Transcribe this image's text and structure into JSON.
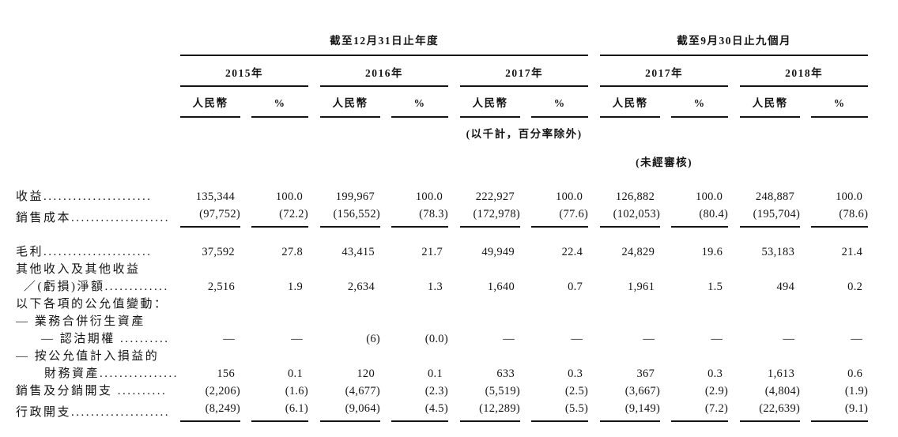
{
  "table": {
    "groups": [
      {
        "title": "截至12月31日止年度",
        "years": [
          "2015年",
          "2016年",
          "2017年"
        ]
      },
      {
        "title": "截至9月30日止九個月",
        "years": [
          "2017年",
          "2018年"
        ]
      }
    ],
    "col_headers": {
      "currency": "人民幣",
      "percent": "%"
    },
    "notes": {
      "units": "(以千計，百分率除外)",
      "unaudited": "(未經審核)"
    },
    "rows": [
      {
        "label": "收益......................",
        "indent": 0,
        "rule_after": false,
        "values": [
          "135,344",
          "100.0",
          "199,967",
          "100.0",
          "222,927",
          "100.0",
          "126,882",
          "100.0",
          "248,887",
          "100.0"
        ]
      },
      {
        "label": "銷售成本....................",
        "indent": 0,
        "rule_after": true,
        "values": [
          "(97,752)",
          "(72.2)",
          "(156,552)",
          "(78.3)",
          "(172,978)",
          "(77.6)",
          "(102,053)",
          "(80.4)",
          "(195,704)",
          "(78.6)"
        ]
      },
      {
        "label": "毛利......................",
        "indent": 0,
        "rule_after": false,
        "values": [
          "37,592",
          "27.8",
          "43,415",
          "21.7",
          "49,949",
          "22.4",
          "24,829",
          "19.6",
          "53,183",
          "21.4"
        ]
      },
      {
        "label": "其他收入及其他收益",
        "indent": 0,
        "rule_after": false,
        "values": []
      },
      {
        "label": "／(虧損)淨額.............",
        "indent": 1,
        "rule_after": false,
        "values": [
          "2,516",
          "1.9",
          "2,634",
          "1.3",
          "1,640",
          "0.7",
          "1,961",
          "1.5",
          "494",
          "0.2"
        ]
      },
      {
        "label": "以下各項的公允值變動：",
        "indent": 0,
        "rule_after": false,
        "values": []
      },
      {
        "label": "— 業務合併衍生資產",
        "indent": 0,
        "rule_after": false,
        "values": []
      },
      {
        "label": "— 認沽期權 ..........",
        "indent": 2,
        "rule_after": false,
        "values": [
          "—",
          "—",
          "(6)",
          "(0.0)",
          "—",
          "—",
          "—",
          "—",
          "—",
          "—"
        ]
      },
      {
        "label": "— 按公允值計入損益的",
        "indent": 0,
        "rule_after": false,
        "values": []
      },
      {
        "label": "財務資產................",
        "indent": 3,
        "rule_after": false,
        "values": [
          "156",
          "0.1",
          "120",
          "0.1",
          "633",
          "0.3",
          "367",
          "0.3",
          "1,613",
          "0.6"
        ]
      },
      {
        "label": "銷售及分銷開支 ..........",
        "indent": 0,
        "rule_after": false,
        "values": [
          "(2,206)",
          "(1.6)",
          "(4,677)",
          "(2.3)",
          "(5,519)",
          "(2.5)",
          "(3,667)",
          "(2.9)",
          "(4,804)",
          "(1.9)"
        ]
      },
      {
        "label": "行政開支....................",
        "indent": 0,
        "rule_after": true,
        "values": [
          "(8,249)",
          "(6.1)",
          "(9,064)",
          "(4.5)",
          "(12,289)",
          "(5.5)",
          "(9,149)",
          "(7.2)",
          "(22,639)",
          "(9.1)"
        ]
      }
    ]
  }
}
